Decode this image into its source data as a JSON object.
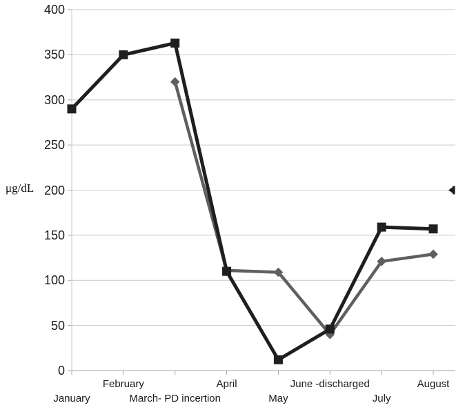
{
  "chart_data": {
    "type": "line",
    "title": "",
    "ylabel": "μg/dL",
    "xlabel": "",
    "ylim": [
      0,
      400
    ],
    "ytick_step": 50,
    "yticks": [
      400,
      350,
      300,
      250,
      200,
      150,
      100,
      50,
      0
    ],
    "grid": true,
    "legend": "none",
    "categories": [
      {
        "label": "January",
        "row": 2
      },
      {
        "label": "February",
        "row": 1
      },
      {
        "label": "March- PD incertion",
        "row": 2
      },
      {
        "label": "April",
        "row": 1
      },
      {
        "label": "May",
        "row": 2
      },
      {
        "label": "June -discharged",
        "row": 1
      },
      {
        "label": "July",
        "row": 2
      },
      {
        "label": "August",
        "row": 1
      }
    ],
    "series": [
      {
        "name": "gray-series",
        "marker": "diamond",
        "color": "#5f5f5f",
        "values": [
          null,
          null,
          320,
          111,
          109,
          40,
          121,
          129
        ]
      },
      {
        "name": "black-series",
        "marker": "square",
        "color": "#1f1f1f",
        "values": [
          290,
          350,
          363,
          110,
          12,
          46,
          159,
          157
        ]
      }
    ]
  },
  "colors": {
    "background": "#ffffff",
    "gridline": "#c9c9c9",
    "axis": "#a6a6a6",
    "text": "#1a1a1a",
    "edge_marker": "#1e1e1e"
  }
}
